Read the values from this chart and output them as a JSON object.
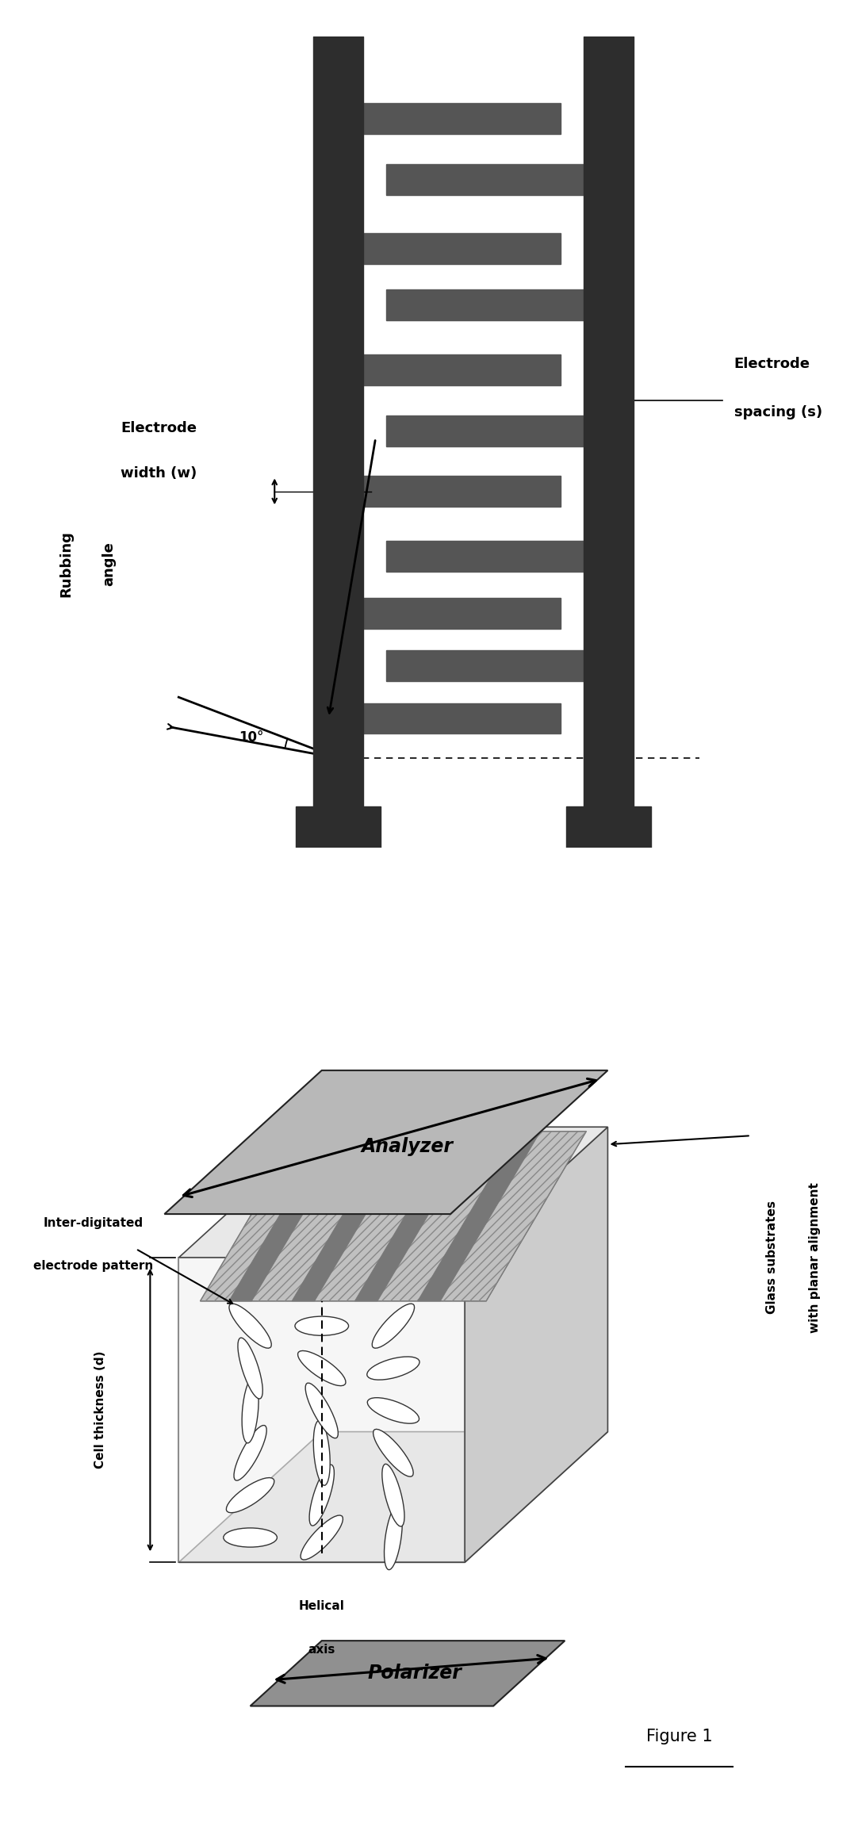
{
  "background_color": "#ffffff",
  "top_diagram": {
    "electrode_color": "#555555",
    "rail_color": "#2d2d2d",
    "electrode_width_label_line1": "Electrode",
    "electrode_width_label_line2": "width (w)",
    "electrode_spacing_label_line1": "Electrode",
    "electrode_spacing_label_line2": "spacing (s)",
    "rubbing_angle_label_line1": "Rubbing",
    "rubbing_angle_label_line2": "angle",
    "angle_text": "10°"
  },
  "bottom_diagram": {
    "analyzer_label": "Analyzer",
    "polarizer_label": "Polarizer",
    "helical_axis_label_line1": "Helical",
    "helical_axis_label_line2": "axis",
    "cell_thickness_label": "Cell thickness (d)",
    "inter_digitated_label_line1": "Inter-digitated",
    "inter_digitated_label_line2": "electrode pattern",
    "glass_substrates_label_line1": "Glass substrates",
    "glass_substrates_label_line2": "with planar alignment",
    "figure_label": "Figure 1"
  }
}
